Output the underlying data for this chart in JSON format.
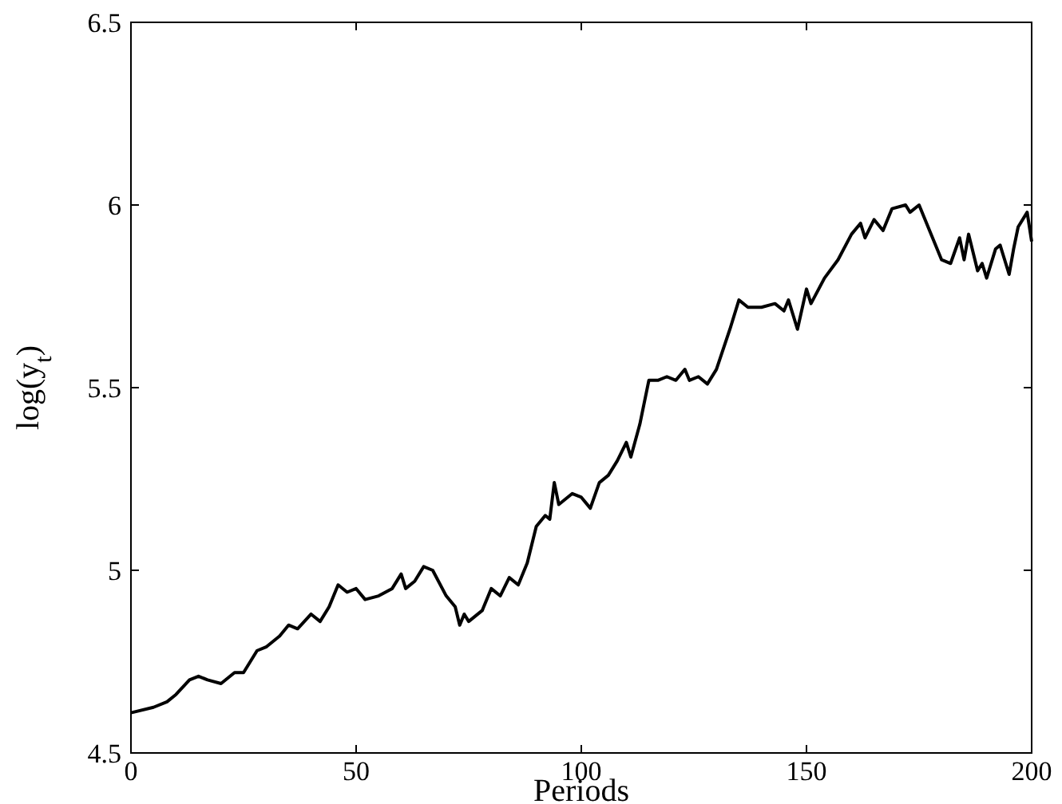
{
  "chart_data": {
    "type": "line",
    "xlabel": "Periods",
    "ylabel": "log(y$_{t}$)",
    "x": [
      0,
      5,
      8,
      10,
      13,
      15,
      17,
      20,
      23,
      25,
      28,
      30,
      33,
      35,
      37,
      40,
      42,
      44,
      46,
      48,
      50,
      52,
      55,
      58,
      60,
      61,
      63,
      65,
      67,
      70,
      72,
      73,
      74,
      75,
      78,
      80,
      82,
      84,
      86,
      88,
      90,
      92,
      93,
      94,
      95,
      98,
      100,
      102,
      104,
      106,
      108,
      110,
      111,
      113,
      115,
      117,
      119,
      121,
      123,
      124,
      126,
      128,
      130,
      133,
      135,
      137,
      140,
      143,
      145,
      146,
      148,
      150,
      151,
      154,
      157,
      160,
      162,
      163,
      165,
      167,
      169,
      172,
      173,
      175,
      178,
      180,
      182,
      184,
      185,
      186,
      188,
      189,
      190,
      192,
      193,
      195,
      196,
      197,
      199,
      200
    ],
    "series": [
      {
        "color": "#000000",
        "values": [
          4.61,
          4.625,
          4.64,
          4.66,
          4.7,
          4.71,
          4.7,
          4.69,
          4.72,
          4.72,
          4.78,
          4.79,
          4.82,
          4.85,
          4.84,
          4.88,
          4.86,
          4.9,
          4.96,
          4.94,
          4.95,
          4.92,
          4.93,
          4.95,
          4.99,
          4.95,
          4.97,
          5.01,
          5.0,
          4.93,
          4.9,
          4.85,
          4.88,
          4.86,
          4.89,
          4.95,
          4.93,
          4.98,
          4.96,
          5.02,
          5.12,
          5.15,
          5.14,
          5.24,
          5.18,
          5.21,
          5.2,
          5.17,
          5.24,
          5.26,
          5.3,
          5.35,
          5.31,
          5.4,
          5.52,
          5.52,
          5.53,
          5.52,
          5.55,
          5.52,
          5.53,
          5.51,
          5.55,
          5.66,
          5.74,
          5.72,
          5.72,
          5.73,
          5.71,
          5.74,
          5.66,
          5.77,
          5.73,
          5.8,
          5.85,
          5.92,
          5.95,
          5.91,
          5.96,
          5.93,
          5.99,
          6.0,
          5.98,
          6.0,
          5.91,
          5.85,
          5.84,
          5.91,
          5.85,
          5.92,
          5.82,
          5.84,
          5.8,
          5.88,
          5.89,
          5.81,
          5.88,
          5.94,
          5.98,
          5.9
        ]
      }
    ],
    "xlim": [
      0,
      200
    ],
    "xticks": [
      0,
      50,
      100,
      150,
      200
    ],
    "ylim": [
      4.5,
      6.5
    ],
    "yticks": [
      4.5,
      5,
      5.5,
      6,
      6.5
    ],
    "grid": false,
    "line_style": "solid"
  }
}
